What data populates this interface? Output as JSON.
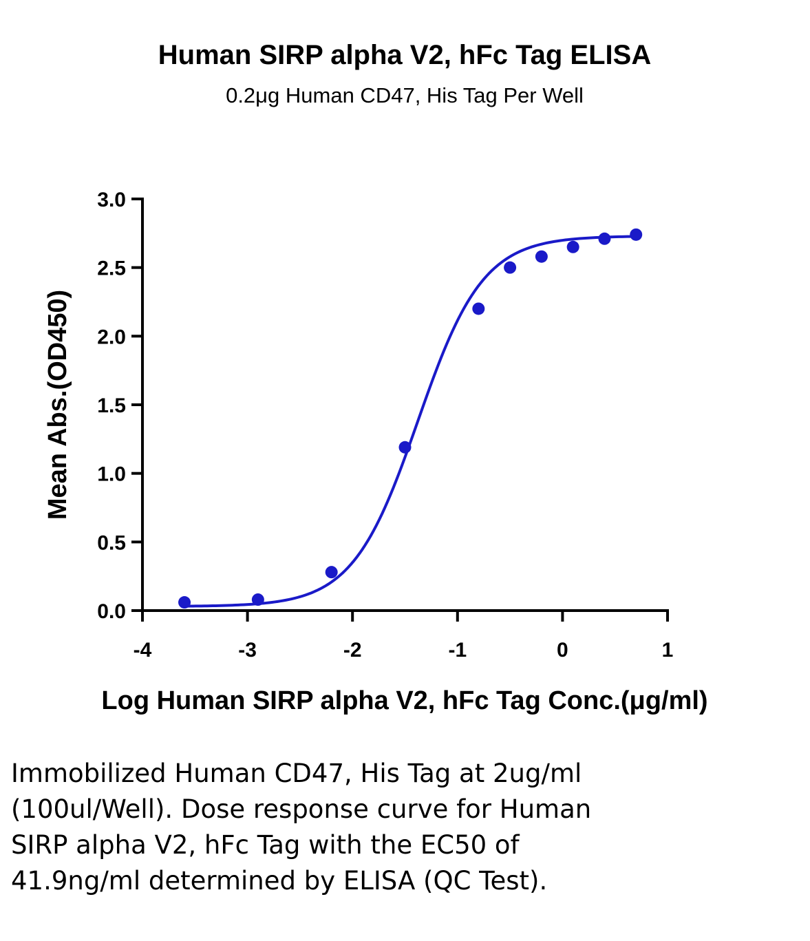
{
  "chart_data": {
    "type": "scatter",
    "title": "Human SIRP alpha V2, hFc Tag ELISA",
    "subtitle": "0.2μg Human CD47, His Tag Per Well",
    "xlabel": "Log Human SIRP alpha V2, hFc Tag Conc.(μg/ml)",
    "ylabel": "Mean Abs.(OD450)",
    "xlim": [
      -4,
      1
    ],
    "ylim": [
      0,
      3
    ],
    "x_ticks": [
      "-4",
      "-3",
      "-2",
      "-1",
      "0",
      "1"
    ],
    "y_ticks": [
      "0.0",
      "0.5",
      "1.0",
      "1.5",
      "2.0",
      "2.5",
      "3.0"
    ],
    "grid": false,
    "series": [
      {
        "color": "#1a1ac8",
        "points": [
          {
            "x": -3.6,
            "y": 0.06
          },
          {
            "x": -2.9,
            "y": 0.08
          },
          {
            "x": -2.2,
            "y": 0.28
          },
          {
            "x": -1.5,
            "y": 1.19
          },
          {
            "x": -0.8,
            "y": 2.2
          },
          {
            "x": -0.5,
            "y": 2.5
          },
          {
            "x": -0.2,
            "y": 2.58
          },
          {
            "x": 0.1,
            "y": 2.65
          },
          {
            "x": 0.4,
            "y": 2.71
          },
          {
            "x": 0.7,
            "y": 2.74
          }
        ],
        "fit": {
          "model": "4PL",
          "bottom": 0.03,
          "top": 2.73,
          "logEC50": -1.378,
          "hill": 1.4
        }
      }
    ]
  },
  "caption": "Immobilized Human CD47, His Tag at 2ug/ml (100ul/Well). Dose response curve for Human SIRP alpha V2, hFc Tag with the EC50 of 41.9ng/ml determined by ELISA (QC Test)."
}
